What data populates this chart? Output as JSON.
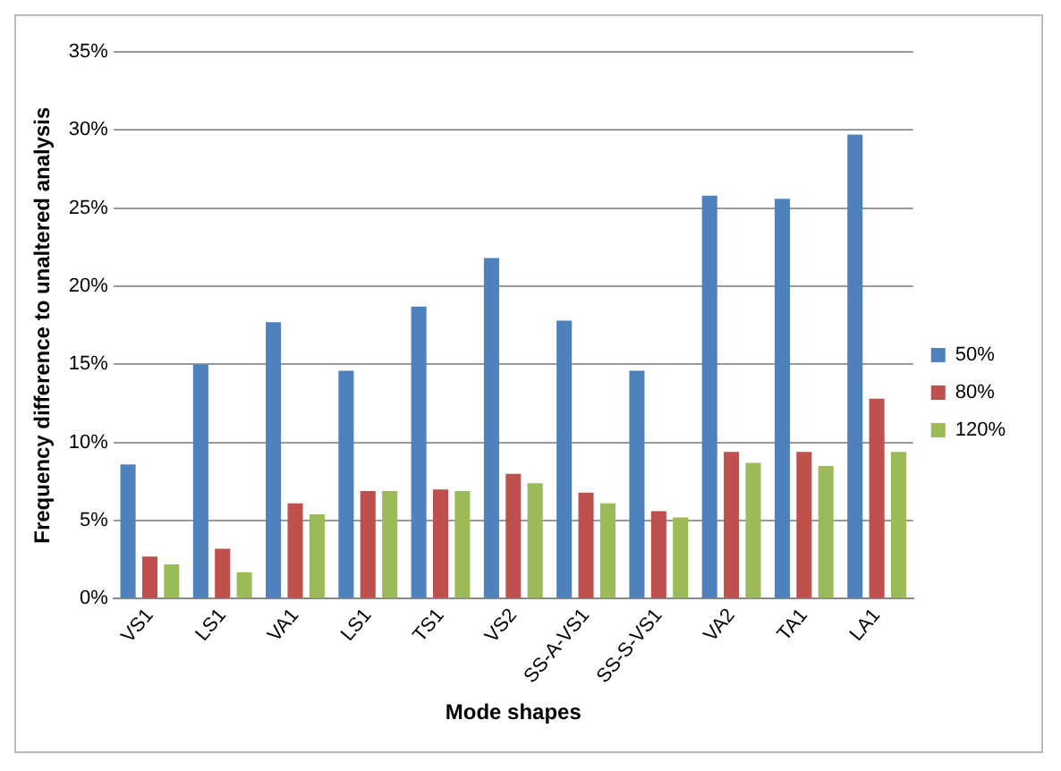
{
  "chart_data": {
    "type": "bar",
    "xlabel": "Mode shapes",
    "ylabel": "Frequency difference to unaltered analysis",
    "categories": [
      "VS1",
      "LS1",
      "VA1",
      "LS1",
      "TS1",
      "VS2",
      "SS-A-VS1",
      "SS-S-VS1",
      "VA2",
      "TA1",
      "LA1"
    ],
    "series": [
      {
        "name": "50%",
        "color": "#4f81bd",
        "values": [
          8.6,
          15.0,
          17.7,
          14.6,
          18.7,
          21.8,
          17.8,
          14.6,
          25.8,
          25.6,
          29.7
        ]
      },
      {
        "name": "80%",
        "color": "#c0504d",
        "values": [
          2.7,
          3.2,
          6.1,
          6.9,
          7.0,
          8.0,
          6.8,
          5.6,
          9.4,
          9.4,
          12.8
        ]
      },
      {
        "name": "120%",
        "color": "#9bbb59",
        "values": [
          2.2,
          1.7,
          5.4,
          6.9,
          6.9,
          7.4,
          6.1,
          5.2,
          8.7,
          8.5,
          9.4
        ]
      }
    ],
    "ylim": [
      0,
      35
    ],
    "yticks": [
      {
        "value": 0,
        "label": "0%"
      },
      {
        "value": 5,
        "label": "5%"
      },
      {
        "value": 10,
        "label": "10%"
      },
      {
        "value": 15,
        "label": "15%"
      },
      {
        "value": 20,
        "label": "20%"
      },
      {
        "value": 25,
        "label": "25%"
      },
      {
        "value": 30,
        "label": "30%"
      },
      {
        "value": 35,
        "label": "35%"
      }
    ],
    "grid": "y",
    "legend": "right"
  }
}
